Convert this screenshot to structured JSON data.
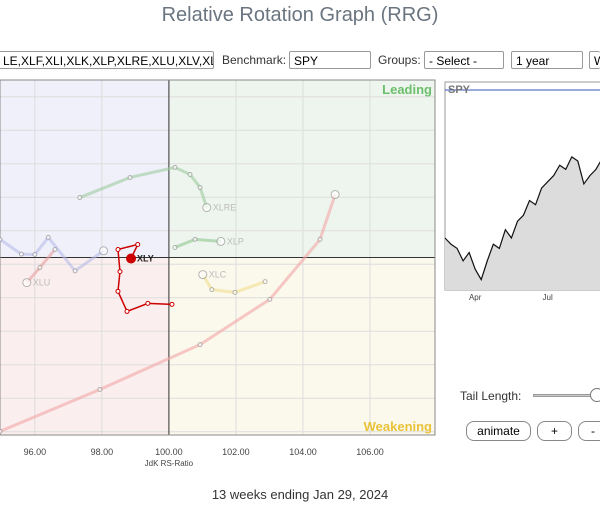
{
  "header": {
    "title": "Relative Rotation Graph (RRG)"
  },
  "toolbar": {
    "symbols": "LE,XLF,XLI,XLK,XLP,XLRE,XLU,XLV,XL",
    "benchmark_label": "Benchmark:",
    "benchmark": "SPY",
    "groups_label": "Groups:",
    "groups": "- Select -",
    "period": "1 year",
    "frequency": "W"
  },
  "chart_data": {
    "type": "scatter",
    "xlabel": "JdK RS-Ratio",
    "xlim": [
      94.96,
      107.94
    ],
    "ylim": [
      94.7,
      105.3
    ],
    "xticks": [
      {
        "value": 96,
        "label": "96.00"
      },
      {
        "value": 98,
        "label": "98.00"
      },
      {
        "value": 100,
        "label": "100.00"
      },
      {
        "value": 102,
        "label": "102.00"
      },
      {
        "value": 104,
        "label": "104.00"
      },
      {
        "value": 106,
        "label": "106.00"
      }
    ],
    "center": 100,
    "quadrants": {
      "leading": "Leading",
      "weakening": "Weakening"
    },
    "series": [
      {
        "color": "#f4a7a7",
        "x": [
          94.96,
          97.94,
          100.93,
          103.01,
          104.51,
          104.96
        ],
        "y": [
          94.81,
          96.06,
          97.4,
          98.75,
          100.54,
          101.88
        ]
      },
      {
        "color": "#b8bde8",
        "x": [
          94.96,
          95.6,
          96.0,
          96.4,
          97.2,
          98.05
        ],
        "y": [
          100.54,
          100.1,
          100.09,
          100.6,
          99.6,
          100.2
        ]
      },
      {
        "name": "XLU",
        "color": "#e8a0a0",
        "x": [
          96.6,
          96.15,
          95.76
        ],
        "y": [
          100.24,
          99.7,
          99.25
        ]
      },
      {
        "name": "XLRE",
        "color": "#9ccc9c",
        "x": [
          97.34,
          98.84,
          100.18,
          100.63,
          100.93,
          101.13
        ],
        "y": [
          101.79,
          102.39,
          102.69,
          102.48,
          102.09,
          101.49
        ]
      },
      {
        "name": "XLP",
        "color": "#8fc48f",
        "x": [
          100.18,
          100.78,
          101.55
        ],
        "y": [
          100.3,
          100.54,
          100.48
        ]
      },
      {
        "name": "XLC",
        "color": "#f2de8c",
        "x": [
          102.87,
          101.97,
          101.28,
          101.01
        ],
        "y": [
          99.28,
          98.96,
          99.04,
          99.49
        ]
      },
      {
        "name": "XLY",
        "color": "#cc0000",
        "x": [
          100.09,
          99.37,
          98.75,
          98.48,
          98.54,
          98.48,
          99.07,
          98.87
        ],
        "y": [
          98.6,
          98.63,
          98.39,
          98.99,
          99.58,
          100.24,
          100.39,
          99.97
        ]
      }
    ]
  },
  "spy_chart": {
    "title": "SPY",
    "ylim": [
      370,
      470
    ],
    "values": [
      395,
      392,
      390,
      384,
      388,
      380,
      375,
      384,
      392,
      390,
      399,
      395,
      403,
      406,
      413,
      411,
      419,
      422,
      425,
      430,
      428,
      434,
      432,
      421,
      425,
      428,
      433,
      425
    ],
    "xlabels": [
      {
        "index": 5,
        "label": "Apr"
      },
      {
        "index": 17,
        "label": "Jul"
      }
    ]
  },
  "controls": {
    "tail_label": "Tail Length:",
    "animate": "animate",
    "plus": "+",
    "minus": "-"
  },
  "footer": {
    "caption": "13 weeks ending Jan 29, 2024"
  }
}
